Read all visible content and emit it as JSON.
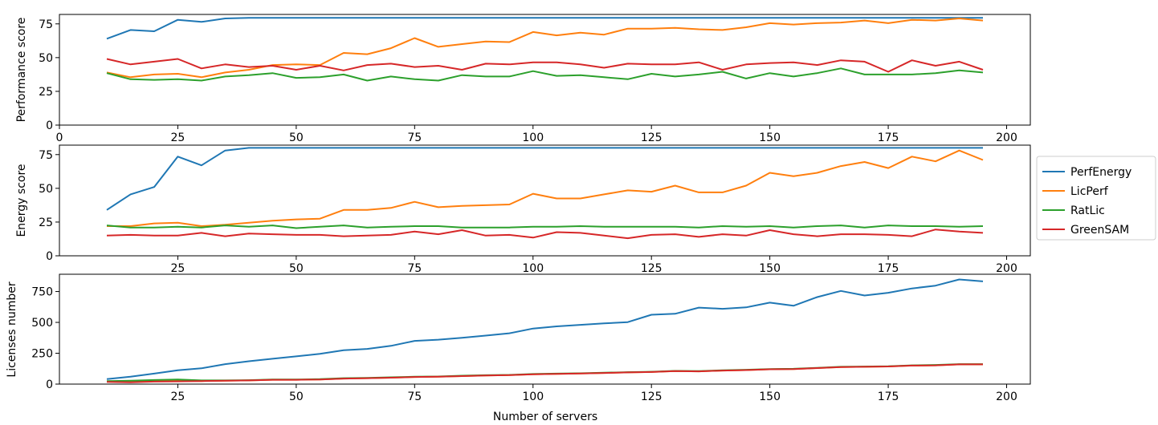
{
  "chart_data": [
    {
      "type": "line",
      "ylabel": "Performance score",
      "xlabel": "",
      "xlim": [
        0,
        205
      ],
      "ylim": [
        0,
        82
      ],
      "xticks": [
        0,
        25,
        50,
        75,
        100,
        125,
        150,
        175,
        200
      ],
      "yticks": [
        0,
        25,
        50,
        75
      ],
      "grid": false,
      "x": [
        10,
        15,
        20,
        25,
        30,
        35,
        40,
        45,
        50,
        55,
        60,
        65,
        70,
        75,
        80,
        85,
        90,
        95,
        100,
        105,
        110,
        115,
        120,
        125,
        130,
        135,
        140,
        145,
        150,
        155,
        160,
        165,
        170,
        175,
        180,
        185,
        190,
        195
      ],
      "series": [
        {
          "name": "PerfEnergy",
          "color": "#1f77b4",
          "values": [
            64,
            70.5,
            69.5,
            78,
            76.5,
            79,
            79.5,
            79.5,
            79.5,
            79.5,
            79.5,
            79.5,
            79.5,
            79.5,
            79.5,
            79.5,
            79.5,
            79.5,
            79.5,
            79.5,
            79.5,
            79.5,
            79.5,
            79.5,
            79.5,
            79.5,
            79.5,
            79.5,
            79.5,
            79.5,
            79.5,
            79.5,
            79.5,
            79.5,
            79.5,
            79.5,
            79.5,
            79.5
          ]
        },
        {
          "name": "LicPerf",
          "color": "#ff7f0e",
          "values": [
            39,
            35.5,
            37.5,
            38,
            35.5,
            39,
            41,
            44.5,
            45,
            44.5,
            53.5,
            52.5,
            57,
            64.5,
            58,
            60,
            62,
            61.5,
            69,
            66.5,
            68.5,
            67,
            71.5,
            71.5,
            72,
            71,
            70.5,
            72.5,
            75.5,
            74.5,
            75.5,
            76,
            77.5,
            75.5,
            78,
            77.5,
            79,
            77.5
          ]
        },
        {
          "name": "RatLic",
          "color": "#2ca02c",
          "values": [
            38.5,
            34,
            33.5,
            34,
            33,
            36,
            37,
            38.5,
            35,
            35.5,
            37.5,
            33,
            36,
            34,
            33,
            37,
            36,
            36,
            40,
            36.5,
            37,
            35.5,
            34,
            38,
            36,
            37.5,
            39.5,
            34.5,
            38.5,
            36,
            38.5,
            42,
            37.5,
            37.5,
            37.5,
            38.5,
            40.5,
            39
          ]
        },
        {
          "name": "GreenSAM",
          "color": "#d62728",
          "values": [
            49,
            45,
            47,
            49,
            42,
            45,
            43,
            44,
            41,
            44,
            40.5,
            44.5,
            45.5,
            43,
            44,
            41,
            45.5,
            45,
            46.5,
            46.5,
            45,
            42.5,
            45.5,
            45,
            45,
            46.5,
            41,
            45,
            46,
            46.5,
            44.5,
            48,
            47,
            39.5,
            48,
            44,
            47,
            41
          ]
        }
      ]
    },
    {
      "type": "line",
      "ylabel": "Energy score",
      "xlabel": "",
      "xlim": [
        0,
        205
      ],
      "ylim": [
        0,
        82
      ],
      "xticks": [
        25,
        50,
        75,
        100,
        125,
        150,
        175,
        200
      ],
      "yticks": [
        0,
        25,
        50,
        75
      ],
      "grid": false,
      "x": [
        10,
        15,
        20,
        25,
        30,
        35,
        40,
        45,
        50,
        55,
        60,
        65,
        70,
        75,
        80,
        85,
        90,
        95,
        100,
        105,
        110,
        115,
        120,
        125,
        130,
        135,
        140,
        145,
        150,
        155,
        160,
        165,
        170,
        175,
        180,
        185,
        190,
        195
      ],
      "series": [
        {
          "name": "PerfEnergy",
          "color": "#1f77b4",
          "values": [
            34,
            45.5,
            51,
            73.5,
            67,
            78,
            80,
            80,
            80,
            80,
            80,
            80,
            80,
            80,
            80,
            80,
            80,
            80,
            80,
            80,
            80,
            80,
            80,
            80,
            80,
            80,
            80,
            80,
            80,
            80,
            80,
            80,
            80,
            80,
            80,
            80,
            80,
            80
          ]
        },
        {
          "name": "LicPerf",
          "color": "#ff7f0e",
          "values": [
            22,
            22,
            24,
            24.5,
            22,
            23,
            24.5,
            26,
            27,
            27.5,
            34,
            34,
            35.5,
            40,
            36,
            37,
            37.5,
            38,
            46,
            42.5,
            42.5,
            45.5,
            48.5,
            47.5,
            52,
            47,
            47,
            52,
            61.5,
            59,
            61.5,
            66.5,
            69.5,
            65,
            73.5,
            70,
            78,
            71
          ]
        },
        {
          "name": "RatLic",
          "color": "#2ca02c",
          "values": [
            22.5,
            21,
            21,
            21.5,
            21,
            22.5,
            21.5,
            22.5,
            20.5,
            21.5,
            22.5,
            21,
            21.5,
            22,
            22,
            21,
            21,
            21,
            21.5,
            21.5,
            22,
            21.5,
            21.5,
            21.5,
            21.5,
            21,
            22,
            21.5,
            22,
            21,
            22,
            22.5,
            21,
            22.5,
            22,
            22,
            21.5,
            22
          ]
        },
        {
          "name": "GreenSAM",
          "color": "#d62728",
          "values": [
            15,
            15.5,
            15,
            15,
            17,
            14.5,
            16.5,
            16,
            15.5,
            15.5,
            14.5,
            15,
            15.5,
            18,
            16,
            19,
            15,
            15.5,
            13.5,
            17.5,
            17,
            15,
            13,
            15.5,
            16,
            14,
            16,
            15,
            19,
            16,
            14.5,
            16,
            16,
            15.5,
            14.5,
            19.5,
            18,
            17
          ]
        }
      ]
    },
    {
      "type": "line",
      "ylabel": "Licenses number",
      "xlabel": "Number of servers",
      "xlim": [
        0,
        205
      ],
      "ylim": [
        0,
        890
      ],
      "xticks": [
        25,
        50,
        75,
        100,
        125,
        150,
        175,
        200
      ],
      "yticks": [
        0,
        250,
        500,
        750
      ],
      "grid": false,
      "x": [
        10,
        15,
        20,
        25,
        30,
        35,
        40,
        45,
        50,
        55,
        60,
        65,
        70,
        75,
        80,
        85,
        90,
        95,
        100,
        105,
        110,
        115,
        120,
        125,
        130,
        135,
        140,
        145,
        150,
        155,
        160,
        165,
        170,
        175,
        180,
        185,
        190,
        195
      ],
      "series": [
        {
          "name": "PerfEnergy",
          "color": "#1f77b4",
          "values": [
            40,
            60,
            85,
            112,
            128,
            162,
            185,
            205,
            225,
            245,
            275,
            285,
            310,
            350,
            360,
            375,
            393,
            412,
            450,
            468,
            480,
            492,
            502,
            562,
            570,
            620,
            610,
            622,
            660,
            635,
            705,
            755,
            718,
            740,
            775,
            798,
            848,
            832
          ]
        },
        {
          "name": "LicPerf",
          "color": "#ff7f0e",
          "values": [
            20,
            22,
            25,
            28,
            25,
            28,
            30,
            35,
            35,
            38,
            45,
            48,
            52,
            58,
            60,
            65,
            70,
            73,
            80,
            83,
            86,
            90,
            95,
            98,
            105,
            103,
            110,
            114,
            120,
            122,
            130,
            138,
            140,
            143,
            150,
            152,
            160,
            160
          ]
        },
        {
          "name": "RatLic",
          "color": "#2ca02c",
          "values": [
            25,
            28,
            33,
            38,
            30,
            30,
            32,
            37,
            37,
            40,
            48,
            50,
            55,
            60,
            62,
            68,
            72,
            75,
            82,
            85,
            88,
            92,
            97,
            100,
            107,
            105,
            112,
            116,
            122,
            124,
            132,
            140,
            142,
            145,
            152,
            155,
            162,
            162
          ]
        },
        {
          "name": "GreenSAM",
          "color": "#d62728",
          "values": [
            18,
            15,
            20,
            22,
            25,
            28,
            30,
            35,
            35,
            38,
            45,
            48,
            52,
            58,
            60,
            65,
            70,
            73,
            80,
            83,
            86,
            90,
            95,
            98,
            105,
            103,
            110,
            114,
            120,
            122,
            130,
            138,
            140,
            143,
            150,
            152,
            160,
            160
          ]
        }
      ]
    }
  ],
  "legend": {
    "placement": "right",
    "entries": [
      {
        "name": "PerfEnergy",
        "color": "#1f77b4"
      },
      {
        "name": "LicPerf",
        "color": "#ff7f0e"
      },
      {
        "name": "RatLic",
        "color": "#2ca02c"
      },
      {
        "name": "GreenSAM",
        "color": "#d62728"
      }
    ]
  }
}
